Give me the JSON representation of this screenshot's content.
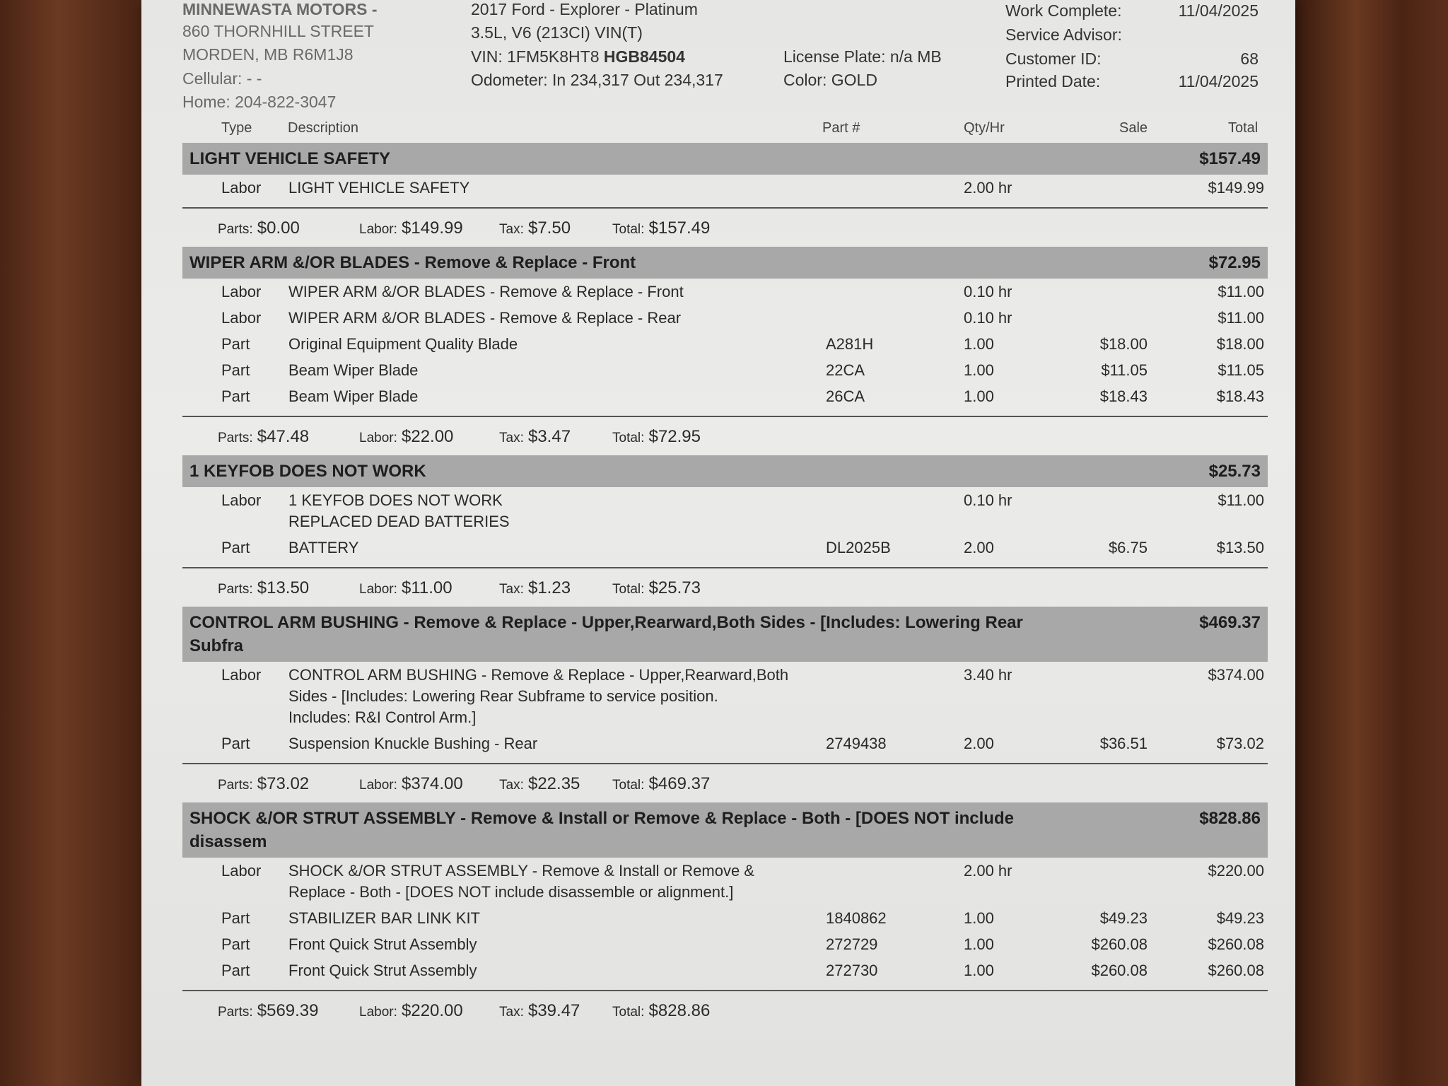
{
  "shop": {
    "name": "MINNEWASTA MOTORS -",
    "street": "860 THORNHILL STREET",
    "city": "MORDEN, MB R6M1J8",
    "cellular": "Cellular: -  -",
    "home": "Home: 204-822-3047"
  },
  "vehicle": {
    "model": "2017 Ford - Explorer - Platinum",
    "engine": "3.5L, V6 (213CI) VIN(T)",
    "vin_prefix": "VIN: 1FM5K8HT8",
    "vin_suffix": "HGB84504",
    "odometer": "Odometer: In 234,317 Out 234,317",
    "plate": "License Plate: n/a MB",
    "color": "Color: GOLD"
  },
  "info": [
    {
      "label": "Work Complete:",
      "value": "11/04/2025"
    },
    {
      "label": "Service Advisor:",
      "value": ""
    },
    {
      "label": "Customer ID:",
      "value": "68"
    },
    {
      "label": "Printed Date:",
      "value": "11/04/2025"
    }
  ],
  "columns": {
    "type": "Type",
    "description": "Description",
    "part": "Part #",
    "qty": "Qty/Hr",
    "sale": "Sale",
    "total": "Total"
  },
  "summary_labels": {
    "parts": "Parts:",
    "labor": "Labor:",
    "tax": "Tax:",
    "total": "Total:"
  },
  "sections": [
    {
      "title": "LIGHT VEHICLE SAFETY",
      "total": "$157.49",
      "items": [
        {
          "type": "Labor",
          "desc": [
            "LIGHT VEHICLE SAFETY"
          ],
          "part": "",
          "qty": "2.00 hr",
          "sale": "",
          "total": "$149.99"
        }
      ],
      "summary": {
        "parts": "$0.00",
        "labor": "$149.99",
        "tax": "$7.50",
        "total": "$157.49"
      }
    },
    {
      "title": "WIPER ARM &/OR BLADES - Remove & Replace - Front",
      "total": "$72.95",
      "items": [
        {
          "type": "Labor",
          "desc": [
            "WIPER ARM &/OR BLADES - Remove & Replace - Front"
          ],
          "part": "",
          "qty": "0.10 hr",
          "sale": "",
          "total": "$11.00"
        },
        {
          "type": "Labor",
          "desc": [
            "WIPER ARM &/OR BLADES - Remove & Replace - Rear"
          ],
          "part": "",
          "qty": "0.10 hr",
          "sale": "",
          "total": "$11.00"
        },
        {
          "type": "Part",
          "desc": [
            "Original Equipment Quality Blade"
          ],
          "part": "A281H",
          "qty": "1.00",
          "sale": "$18.00",
          "total": "$18.00"
        },
        {
          "type": "Part",
          "desc": [
            "Beam Wiper Blade"
          ],
          "part": "22CA",
          "qty": "1.00",
          "sale": "$11.05",
          "total": "$11.05"
        },
        {
          "type": "Part",
          "desc": [
            "Beam Wiper Blade"
          ],
          "part": "26CA",
          "qty": "1.00",
          "sale": "$18.43",
          "total": "$18.43"
        }
      ],
      "summary": {
        "parts": "$47.48",
        "labor": "$22.00",
        "tax": "$3.47",
        "total": "$72.95"
      }
    },
    {
      "title": "1 KEYFOB DOES NOT WORK",
      "total": "$25.73",
      "items": [
        {
          "type": "Labor",
          "desc": [
            "1 KEYFOB DOES NOT WORK",
            "REPLACED DEAD BATTERIES"
          ],
          "part": "",
          "qty": "0.10 hr",
          "sale": "",
          "total": "$11.00"
        },
        {
          "type": "Part",
          "desc": [
            "BATTERY"
          ],
          "part": "DL2025B",
          "qty": "2.00",
          "sale": "$6.75",
          "total": "$13.50"
        }
      ],
      "summary": {
        "parts": "$13.50",
        "labor": "$11.00",
        "tax": "$1.23",
        "total": "$25.73"
      }
    },
    {
      "title": "CONTROL ARM BUSHING - Remove & Replace - Upper,Rearward,Both Sides - [Includes: Lowering Rear Subfra",
      "total": "$469.37",
      "items": [
        {
          "type": "Labor",
          "desc": [
            "CONTROL ARM BUSHING - Remove & Replace - Upper,Rearward,Both",
            "Sides - [Includes: Lowering Rear Subframe to service position.",
            "Includes: R&I Control Arm.]"
          ],
          "part": "",
          "qty": "3.40 hr",
          "sale": "",
          "total": "$374.00"
        },
        {
          "type": "Part",
          "desc": [
            "Suspension Knuckle Bushing - Rear"
          ],
          "part": "2749438",
          "qty": "2.00",
          "sale": "$36.51",
          "total": "$73.02"
        }
      ],
      "summary": {
        "parts": "$73.02",
        "labor": "$374.00",
        "tax": "$22.35",
        "total": "$469.37"
      }
    },
    {
      "title": "SHOCK &/OR STRUT ASSEMBLY - Remove & Install or Remove & Replace - Both - [DOES NOT include disassem",
      "total": "$828.86",
      "items": [
        {
          "type": "Labor",
          "desc": [
            "SHOCK &/OR STRUT ASSEMBLY - Remove & Install or Remove &",
            "Replace - Both - [DOES NOT include disassemble or alignment.]"
          ],
          "part": "",
          "qty": "2.00 hr",
          "sale": "",
          "total": "$220.00"
        },
        {
          "type": "Part",
          "desc": [
            "STABILIZER BAR LINK KIT"
          ],
          "part": "1840862",
          "qty": "1.00",
          "sale": "$49.23",
          "total": "$49.23"
        },
        {
          "type": "Part",
          "desc": [
            "Front Quick Strut Assembly"
          ],
          "part": "272729",
          "qty": "1.00",
          "sale": "$260.08",
          "total": "$260.08"
        },
        {
          "type": "Part",
          "desc": [
            "Front Quick Strut Assembly"
          ],
          "part": "272730",
          "qty": "1.00",
          "sale": "$260.08",
          "total": "$260.08"
        }
      ],
      "summary": {
        "parts": "$569.39",
        "labor": "$220.00",
        "tax": "$39.47",
        "total": "$828.86"
      }
    }
  ]
}
